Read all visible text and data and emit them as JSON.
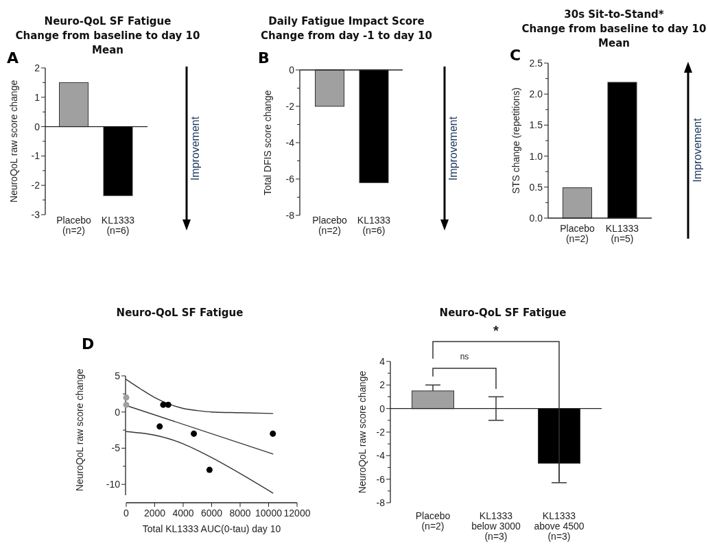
{
  "chart_data": [
    {
      "type": "bar",
      "title": "Neuro-QoL SF Fatigue",
      "subtitle": "Change from baseline to day 10\nMean",
      "ylabel": "NeuroQoL raw score change",
      "categories": [
        "Placebo\n(n=2)",
        "KL1333\n(n=6)"
      ],
      "values": [
        1.5,
        -2.35
      ],
      "colors": [
        "#a0a0a0",
        "#000000"
      ],
      "ylim": [
        -3,
        2
      ],
      "yticks": [
        -3,
        {
          "value": -2.5,
          "label": null
        },
        -2,
        {
          "value": -1.5,
          "label": null
        },
        -1,
        {
          "value": -0.5,
          "label": null
        },
        0,
        {
          "value": 0.5,
          "label": null
        },
        1,
        {
          "value": 1.5,
          "label": null
        },
        2
      ],
      "annotations": [
        "A",
        "Improvement"
      ]
    },
    {
      "type": "bar",
      "title": "Daily Fatigue Impact Score",
      "subtitle": "Change from day -1 to day 10",
      "ylabel": "Total DFIS score change",
      "categories": [
        "Placebo\n(n=2)",
        "KL1333\n(n=6)"
      ],
      "values": [
        -2,
        -6.2
      ],
      "colors": [
        "#a0a0a0",
        "#000000"
      ],
      "ylim": [
        -8,
        0
      ],
      "yticks": [
        -8,
        {
          "value": -7,
          "label": null
        },
        -6,
        {
          "value": -5,
          "label": null
        },
        -4,
        {
          "value": -3,
          "label": null
        },
        -2,
        {
          "value": -1,
          "label": null
        },
        0
      ],
      "annotations": [
        "B",
        "Improvement"
      ]
    },
    {
      "type": "bar",
      "title": "30s Sit-to-Stand*",
      "subtitle": "Change from baseline to day 10\nMean",
      "ylabel": "STS change (repetitions)",
      "categories": [
        "Placebo\n(n=2)",
        "KL1333\n(n=5)"
      ],
      "values": [
        0.49,
        2.19
      ],
      "colors": [
        "#a0a0a0",
        "#000000"
      ],
      "ylim": [
        0,
        2.5
      ],
      "yticks": [
        {
          "value": 0,
          "label": "0.0"
        },
        {
          "value": 0.25,
          "label": null
        },
        {
          "value": 0.5,
          "label": "0.5"
        },
        {
          "value": 0.75,
          "label": null
        },
        {
          "value": 1,
          "label": "1.0"
        },
        {
          "value": 1.25,
          "label": null
        },
        {
          "value": 1.5,
          "label": "1.5"
        },
        {
          "value": 1.75,
          "label": null
        },
        {
          "value": 2,
          "label": "2.0"
        },
        {
          "value": 2.25,
          "label": null
        },
        {
          "value": 2.5,
          "label": "2.5"
        }
      ],
      "annotations": [
        "C",
        "Improvement"
      ]
    },
    {
      "type": "scatter",
      "title": "Neuro-QoL SF Fatigue",
      "xlabel": "Total KL1333 AUC(0-tau) day 10",
      "ylabel": "NeuroQoL raw score change",
      "marker": "circle",
      "xlim": [
        0,
        12000
      ],
      "xticks": [
        0,
        2000,
        4000,
        6000,
        8000,
        10000,
        12000
      ],
      "ylim": [
        -11.5,
        5
      ],
      "yticks": [
        -10,
        {
          "value": -7.5,
          "label": null
        },
        -5,
        {
          "value": -2.5,
          "label": null
        },
        0,
        {
          "value": 2.5,
          "label": null
        },
        5
      ],
      "series": [
        {
          "type": "line",
          "marker": "none",
          "color": "#333333",
          "x": [
            0,
            10300
          ],
          "values": [
            0.9,
            -5.8
          ]
        },
        {
          "type": "line",
          "marker": "none",
          "color": "#333333",
          "x": [
            0,
            1000,
            2000,
            3000,
            4000,
            5000,
            6000,
            8000,
            10300
          ],
          "values": [
            4.5,
            3.2,
            2.0,
            1.1,
            0.5,
            0.2,
            0,
            -0.1,
            -0.2
          ]
        },
        {
          "type": "line",
          "marker": "none",
          "color": "#333333",
          "x": [
            0,
            1000,
            2000,
            3000,
            4000,
            5000,
            6000,
            8000,
            10300
          ],
          "values": [
            -2.7,
            -2.9,
            -3.2,
            -3.7,
            -4.4,
            -5.3,
            -6.3,
            -8.5,
            -11.2
          ]
        },
        {
          "type": "scatter",
          "color": "#a0a0a0",
          "x": [
            0,
            0
          ],
          "values": [
            2,
            1
          ]
        },
        {
          "type": "scatter",
          "color": "#000000",
          "x": [
            2350,
            2600,
            2950,
            4750,
            5850,
            10300
          ],
          "values": [
            -2,
            1,
            1,
            -3,
            -8,
            -3
          ]
        }
      ],
      "annotations": [
        "D"
      ]
    },
    {
      "type": "bar",
      "title": "Neuro-QoL SF Fatigue",
      "ylabel": "NeuroQoL raw score change",
      "categories": [
        "Placebo\n(n=2)",
        "KL1333\nbelow 3000\n(n=3)",
        "KL1333\nabove 4500\n(n=3)"
      ],
      "values": [
        1.5,
        0,
        -4.65
      ],
      "colors": [
        "#a0a0a0",
        "#808080",
        "#000000"
      ],
      "errors": [
        [
          1.5,
          2
        ],
        1,
        [
          -6.3,
          -4.65
        ]
      ],
      "ylim": [
        -8,
        4
      ],
      "yticks": [
        -8,
        {
          "value": -7,
          "label": null
        },
        -6,
        {
          "value": -5,
          "label": null
        },
        -4,
        {
          "value": -3,
          "label": null
        },
        -2,
        {
          "value": -1,
          "label": null
        },
        0,
        {
          "value": 1,
          "label": null
        },
        2,
        {
          "value": 3,
          "label": null
        },
        4
      ],
      "annotations": [
        "ns",
        "*"
      ]
    }
  ]
}
